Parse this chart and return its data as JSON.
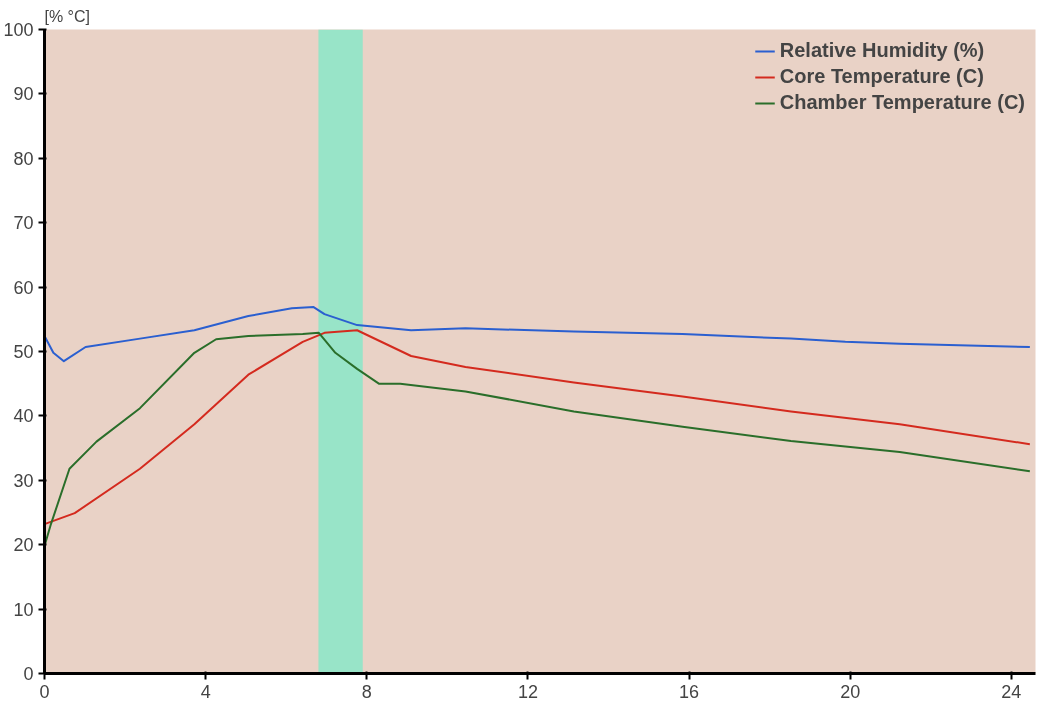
{
  "chart_data": {
    "type": "line",
    "ylabel": "[% °C]",
    "xlim": [
      0,
      24.6
    ],
    "ylim": [
      0,
      100
    ],
    "xticks": [
      0,
      4,
      8,
      12,
      16,
      20,
      24
    ],
    "yticks": [
      0,
      10,
      20,
      30,
      40,
      50,
      60,
      70,
      80,
      90,
      100
    ],
    "grid": false,
    "legend": "top right",
    "marker": "none",
    "line_style": "solid",
    "bands": [
      {
        "axis": "x",
        "from": 6.8,
        "to": 7.9,
        "color": "#8fe6c8"
      }
    ],
    "series": [
      {
        "name": "Relative Humidity (%)",
        "color": "#2a5fd0",
        "x": [
          0,
          0.22,
          0.48,
          1.02,
          2.37,
          3.72,
          5.06,
          6.14,
          6.68,
          6.95,
          7.76,
          9.1,
          10.45,
          13.14,
          15.84,
          18.53,
          19.88,
          21.23,
          24.46
        ],
        "values": [
          52.4,
          49.8,
          48.5,
          50.7,
          52,
          53.3,
          55.5,
          56.7,
          56.9,
          55.8,
          54.1,
          53.3,
          53.6,
          53.1,
          52.7,
          52,
          51.5,
          51.2,
          50.7
        ]
      },
      {
        "name": "Core Temperature (C)",
        "color": "#d42a1e",
        "x": [
          0,
          0.75,
          2.37,
          3.72,
          5.06,
          6.41,
          6.95,
          7.76,
          9.1,
          10.45,
          13.14,
          15.84,
          18.53,
          21.23,
          24.46
        ],
        "values": [
          23.2,
          24.9,
          31.8,
          38.7,
          46.4,
          51.5,
          52.9,
          53.3,
          49.3,
          47.6,
          45.2,
          43,
          40.7,
          38.7,
          35.6
        ]
      },
      {
        "name": "Chamber Temperature (C)",
        "color": "#2a6e2a",
        "x": [
          0,
          0.16,
          0.62,
          1.29,
          2.37,
          3.72,
          4.26,
          5.06,
          6.41,
          6.81,
          7.22,
          7.76,
          8.3,
          8.83,
          10.45,
          13.14,
          15.84,
          18.53,
          21.23,
          24.46
        ],
        "values": [
          19.8,
          23.2,
          31.8,
          36,
          41.2,
          49.8,
          51.9,
          52.4,
          52.7,
          52.9,
          49.8,
          47.3,
          45,
          45,
          43.8,
          40.7,
          38.3,
          36.1,
          34.4,
          31.4
        ]
      }
    ]
  }
}
